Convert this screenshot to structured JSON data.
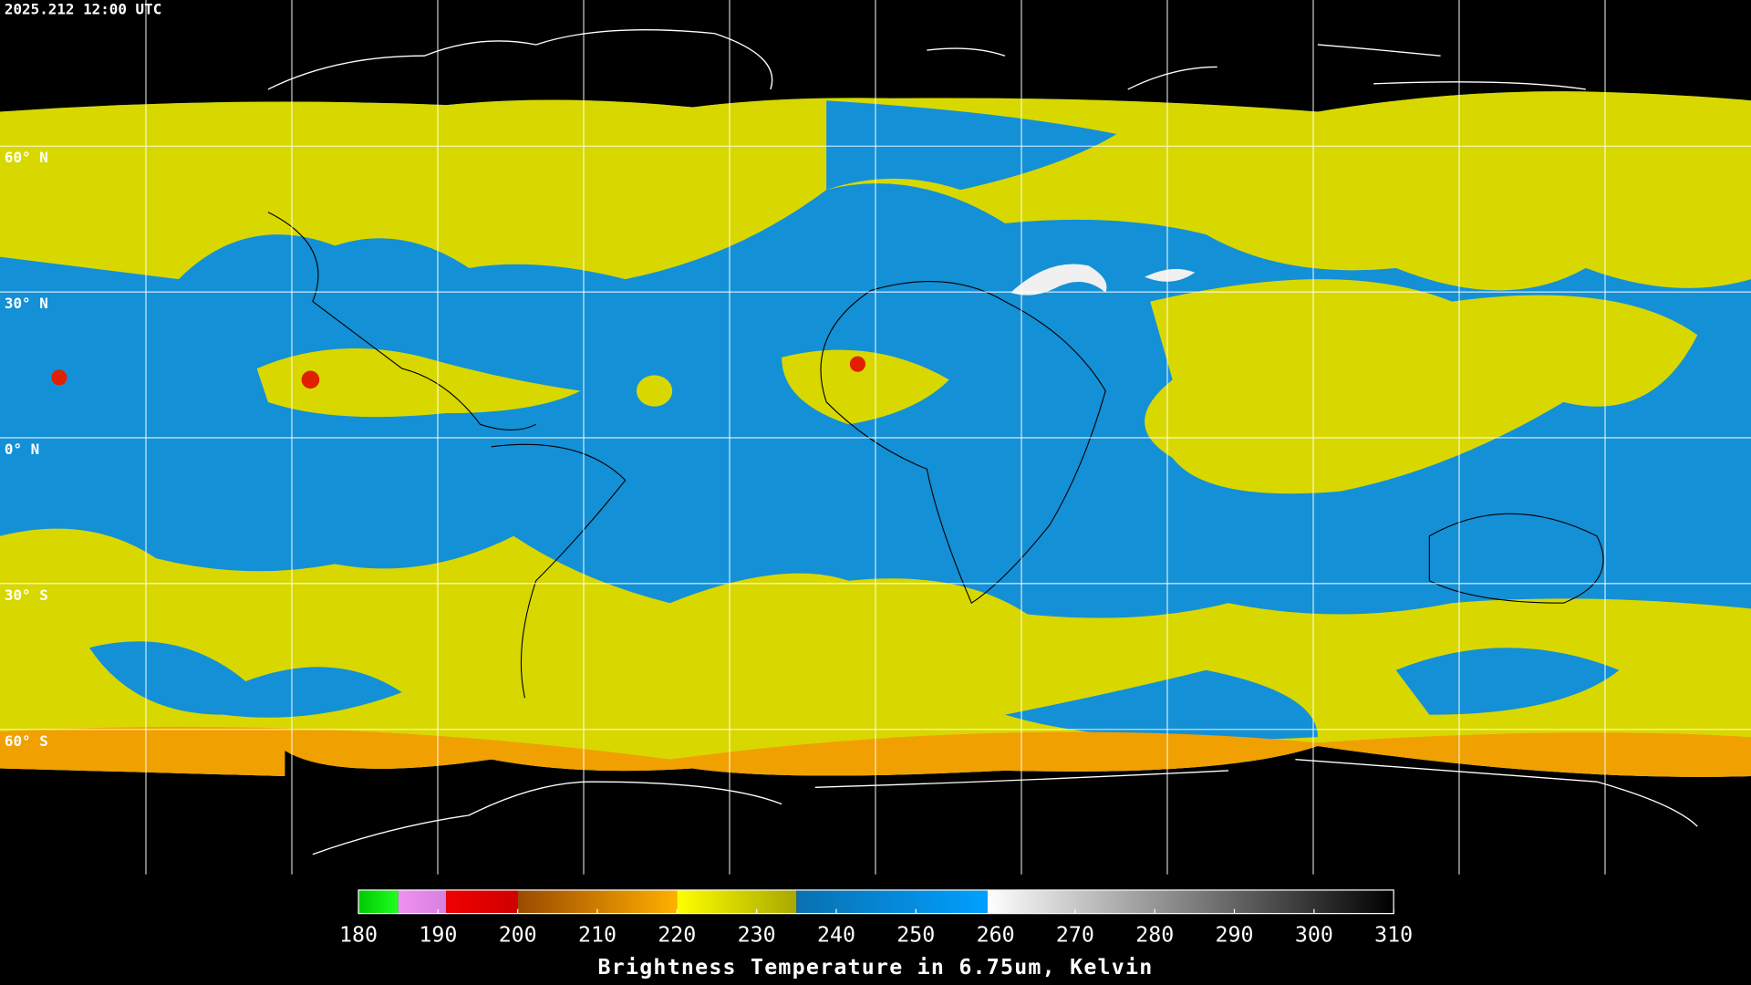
{
  "header": {
    "timestamp": "2025.212 12:00 UTC"
  },
  "map": {
    "lat_lines": [
      {
        "value": 60,
        "label": "60° N"
      },
      {
        "value": 30,
        "label": "30° N"
      },
      {
        "value": 0,
        "label": "0° N"
      },
      {
        "value": -30,
        "label": "30° S"
      },
      {
        "value": -60,
        "label": "60° S"
      }
    ]
  },
  "colorbar": {
    "title": "Brightness Temperature in 6.75um, Kelvin",
    "lim": [
      180,
      310
    ],
    "ticks": [
      180,
      190,
      200,
      210,
      220,
      230,
      240,
      250,
      260,
      270,
      280,
      290,
      300,
      310
    ],
    "segments": [
      {
        "from": 180,
        "to": 185,
        "colors": [
          "#00c800",
          "#20ff20"
        ]
      },
      {
        "from": 185,
        "to": 191,
        "colors": [
          "#f090f0",
          "#d880e0"
        ]
      },
      {
        "from": 191,
        "to": 200,
        "colors": [
          "#f00000",
          "#d00000"
        ]
      },
      {
        "from": 200,
        "to": 220,
        "colors": [
          "#9a4a00",
          "#ffb000"
        ]
      },
      {
        "from": 220,
        "to": 235,
        "colors": [
          "#ffff00",
          "#a8a800"
        ]
      },
      {
        "from": 235,
        "to": 259,
        "colors": [
          "#0a70b0",
          "#00a0ff"
        ]
      },
      {
        "from": 259,
        "to": 310,
        "colors": [
          "#ffffff",
          "#000000"
        ]
      }
    ]
  }
}
